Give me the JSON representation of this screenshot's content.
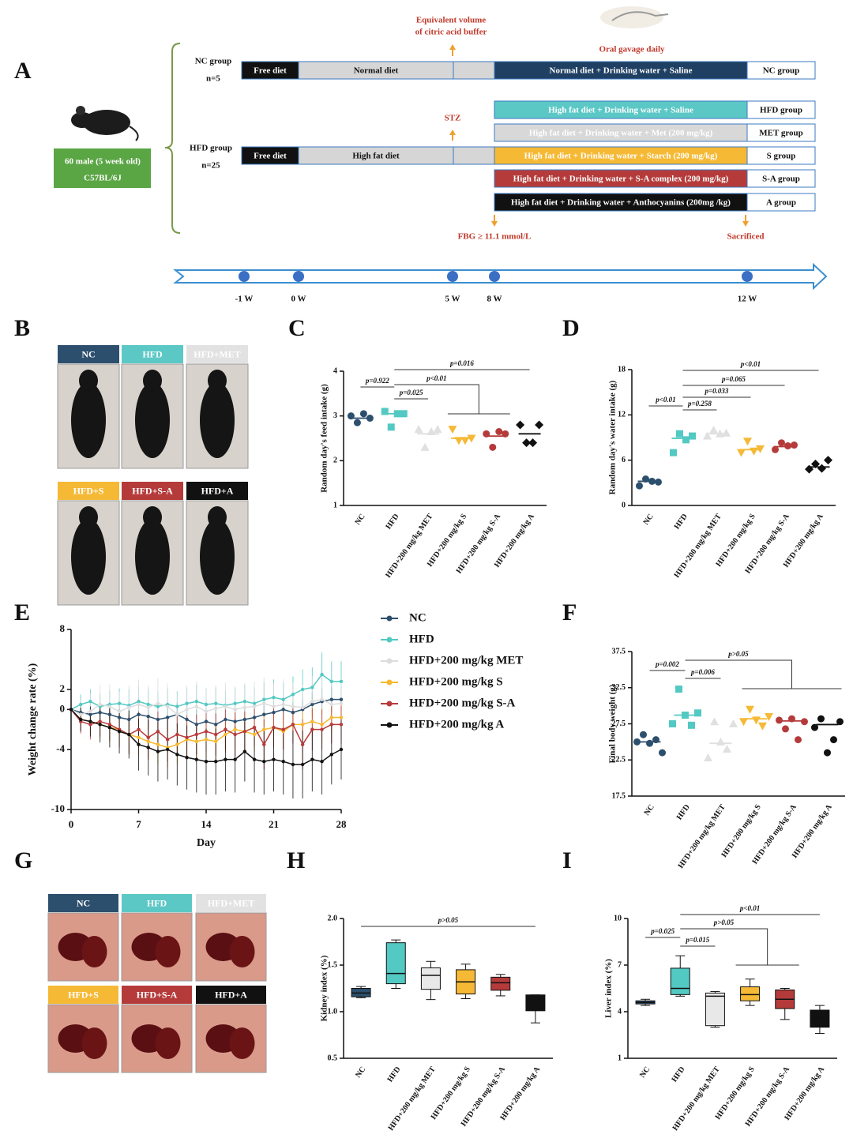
{
  "panel_labels": [
    "A",
    "B",
    "C",
    "D",
    "E",
    "F",
    "G",
    "H",
    "I"
  ],
  "diagram": {
    "annotations": {
      "buffer": [
        "Equivalent volume",
        "of citric acid buffer"
      ],
      "gavage": "Oral gavage daily",
      "stz": "STZ",
      "fbg": "FBG ≥ 11.1 mmol/L",
      "sacrificed": "Sacrificed"
    },
    "mice": [
      "60 male (5 week old)",
      "C57BL/6J"
    ],
    "nc": {
      "name": "NC group",
      "n": "n=5",
      "stages": [
        "Free diet",
        "Normal diet"
      ],
      "treatment": "Normal diet + Drinking water + Saline",
      "group": "NC group",
      "color": "#1f3f63"
    },
    "hfd": {
      "name": "HFD group",
      "n": "n=25",
      "stages": [
        "Free diet",
        "High fat diet"
      ],
      "treatments": [
        {
          "label": "High fat diet + Drinking water + Saline",
          "group": "HFD group",
          "color": "#5bc8c6"
        },
        {
          "label": "High fat diet + Drinking water + Met (200 mg/kg)",
          "group": "MET group",
          "color": "#d8d8d8"
        },
        {
          "label": "High fat diet + Drinking water + Starch (200 mg/kg)",
          "group": "S group",
          "color": "#f5b935"
        },
        {
          "label": "High fat diet + Drinking water + S-A complex (200 mg/kg)",
          "group": "S-A group",
          "color": "#b53b3b"
        },
        {
          "label": "High fat diet + Drinking water + Anthocyanins (200mg /kg)",
          "group": "A group",
          "color": "#111111"
        }
      ]
    },
    "timeline": [
      "-1 W",
      "0 W",
      "5 W",
      "8 W",
      "12 W"
    ]
  },
  "photos_b": {
    "labels": [
      "NC",
      "HFD",
      "HFD+MET",
      "HFD+S",
      "HFD+S-A",
      "HFD+A"
    ]
  },
  "photos_g": {
    "labels": [
      "NC",
      "HFD",
      "HFD+MET",
      "HFD+S",
      "HFD+S-A",
      "HFD+A"
    ]
  },
  "chart_data": [
    {
      "type": "dot",
      "ylabel": "Random day's feed intake (g)",
      "ylim": [
        1,
        4
      ],
      "yticks": [
        1,
        2,
        3,
        4
      ],
      "categories": [
        "NC",
        "HFD",
        "HFD+200 mg/kg MET",
        "HFD+200 mg/kg S",
        "HFD+200 mg/kg S-A",
        "HFD+200 mg/kg A"
      ],
      "colors": [
        "#2d4f6e",
        "#52c9c2",
        "#e0e0e0",
        "#f5b935",
        "#b53b3b",
        "#111111"
      ],
      "markers": [
        "circle",
        "square",
        "triangle-up",
        "triangle-down",
        "circle",
        "diamond"
      ],
      "points": [
        [
          3.0,
          2.85,
          3.05,
          2.95
        ],
        [
          3.1,
          2.75,
          3.05,
          3.05
        ],
        [
          2.7,
          2.3,
          2.65,
          2.7
        ],
        [
          2.7,
          2.45,
          2.45,
          2.5
        ],
        [
          2.6,
          2.3,
          2.65,
          2.6
        ],
        [
          2.8,
          2.4,
          2.4,
          2.8
        ]
      ],
      "means": [
        2.95,
        3.05,
        2.6,
        2.5,
        2.55,
        2.6
      ],
      "annotations": [
        "p=0.922",
        "p=0.025",
        "p<0.01",
        "p=0.016"
      ]
    },
    {
      "type": "dot",
      "ylabel": "Random day's water intake (g)",
      "ylim": [
        0,
        18
      ],
      "yticks": [
        0,
        6,
        12,
        18
      ],
      "categories": [
        "NC",
        "HFD",
        "HFD+200 mg/kg MET",
        "HFD+200 mg/kg S",
        "HFD+200 mg/kg S-A",
        "HFD+200 mg/kg A"
      ],
      "colors": [
        "#2d4f6e",
        "#52c9c2",
        "#e0e0e0",
        "#f5b935",
        "#b53b3b",
        "#111111"
      ],
      "markers": [
        "circle",
        "square",
        "triangle-up",
        "triangle-down",
        "circle",
        "diamond"
      ],
      "points": [
        [
          2.6,
          3.5,
          3.2,
          3.1
        ],
        [
          7.0,
          9.5,
          8.7,
          9.2
        ],
        [
          9.2,
          10.0,
          9.5,
          9.6
        ],
        [
          7.0,
          8.5,
          7.2,
          7.5
        ],
        [
          7.4,
          8.3,
          7.9,
          8.0
        ],
        [
          4.8,
          5.5,
          4.9,
          6.0
        ]
      ],
      "means": [
        3.2,
        8.9,
        9.5,
        7.4,
        7.8,
        5.1
      ],
      "annotations": [
        "p<0.01",
        "p=0.065",
        "p=0.033",
        "p=0.258",
        "p<0.01"
      ]
    },
    {
      "type": "line",
      "xlabel": "Day",
      "ylabel": "Weight change rate (%)",
      "xlim": [
        0,
        28
      ],
      "xticks": [
        0,
        7,
        14,
        21,
        28
      ],
      "ylim": [
        -10,
        8
      ],
      "yticks": [
        -10,
        -4,
        0,
        2,
        8
      ],
      "x": [
        0,
        1,
        2,
        3,
        4,
        5,
        6,
        7,
        8,
        9,
        10,
        11,
        12,
        13,
        14,
        15,
        16,
        17,
        18,
        19,
        20,
        21,
        22,
        23,
        24,
        25,
        26,
        27,
        28
      ],
      "series": [
        {
          "name": "NC",
          "color": "#2d4f6e",
          "values": [
            0,
            -0.3,
            -0.5,
            -0.3,
            -0.5,
            -0.8,
            -1.0,
            -0.5,
            -0.7,
            -1.0,
            -0.8,
            -0.5,
            -1.0,
            -1.5,
            -1.2,
            -1.5,
            -1.0,
            -1.2,
            -1.0,
            -0.8,
            -0.5,
            -0.3,
            0,
            -0.3,
            0,
            0.5,
            0.8,
            1.0,
            1.0
          ],
          "errors": [
            0,
            0.8,
            1.0,
            1.0,
            1.2,
            1.2,
            1.3,
            1.2,
            1.3,
            1.4,
            1.3,
            1.2,
            1.4,
            1.5,
            1.4,
            1.5,
            1.3,
            1.4,
            1.3,
            1.2,
            1.2,
            1.1,
            1.0,
            1.1,
            1.0,
            1.2,
            1.3,
            1.3,
            1.3
          ]
        },
        {
          "name": "HFD",
          "color": "#52c9c2",
          "values": [
            0,
            0.5,
            0.8,
            0.3,
            0.5,
            0.6,
            0.4,
            0.8,
            0.5,
            0.3,
            0.5,
            0.3,
            0.6,
            0.8,
            0.5,
            0.6,
            0.4,
            0.6,
            0.8,
            0.6,
            1.0,
            1.2,
            1.0,
            1.5,
            2.0,
            2.2,
            3.5,
            2.8,
            2.8
          ],
          "errors": [
            0,
            1.0,
            1.2,
            1.3,
            1.4,
            1.5,
            1.6,
            1.5,
            1.6,
            1.5,
            1.6,
            1.5,
            1.6,
            1.7,
            1.6,
            1.6,
            1.5,
            1.6,
            1.7,
            1.6,
            1.7,
            1.8,
            1.7,
            1.8,
            2.0,
            2.0,
            2.2,
            2.0,
            2.0
          ]
        },
        {
          "name": "HFD+200 mg/kg MET",
          "color": "#dddddd",
          "values": [
            0,
            -0.5,
            -0.2,
            0.5,
            0.3,
            -0.2,
            0.2,
            0.5,
            0.2,
            0.6,
            0.3,
            -0.5,
            0,
            0.3,
            -0.2,
            0.1,
            0.3,
            0,
            0.2,
            0.3,
            0.6,
            0.3,
            0.5,
            0.3,
            0.2,
            0.8,
            1.0,
            0.5,
            0.6
          ],
          "errors": [
            0,
            1.5,
            1.8,
            2.0,
            2.2,
            2.0,
            2.2,
            2.5,
            2.2,
            2.5,
            2.3,
            2.2,
            2.4,
            2.5,
            2.2,
            2.3,
            2.4,
            2.3,
            2.4,
            2.5,
            2.6,
            2.4,
            2.5,
            2.4,
            2.3,
            2.5,
            2.6,
            2.4,
            2.5
          ]
        },
        {
          "name": "HFD+200 mg/kg S",
          "color": "#f5b82e",
          "values": [
            0,
            -1.0,
            -1.2,
            -1.5,
            -1.8,
            -2.0,
            -2.5,
            -2.8,
            -3.2,
            -3.5,
            -3.8,
            -3.5,
            -3.0,
            -3.2,
            -3.0,
            -3.2,
            -2.5,
            -2.0,
            -2.2,
            -2.5,
            -2.0,
            -1.8,
            -2.2,
            -1.5,
            -1.5,
            -1.2,
            -1.5,
            -0.8,
            -0.8
          ],
          "errors": [
            0,
            1.0,
            1.2,
            1.4,
            1.5,
            1.6,
            1.8,
            1.8,
            1.9,
            2.0,
            2.0,
            1.9,
            1.8,
            1.9,
            1.8,
            1.9,
            1.8,
            1.7,
            1.8,
            1.8,
            1.7,
            1.6,
            1.7,
            1.6,
            1.6,
            1.5,
            1.6,
            1.5,
            1.5
          ]
        },
        {
          "name": "HFD+200 mg/kg S-A",
          "color": "#b83a3a",
          "values": [
            0,
            -1.2,
            -1.5,
            -1.2,
            -1.5,
            -2.0,
            -2.5,
            -2.0,
            -2.8,
            -2.2,
            -3.0,
            -2.5,
            -2.8,
            -2.5,
            -2.2,
            -2.5,
            -2.0,
            -2.5,
            -2.2,
            -1.8,
            -3.5,
            -1.8,
            -2.0,
            -1.5,
            -3.5,
            -2.0,
            -2.0,
            -1.5,
            -1.5
          ],
          "errors": [
            0,
            1.2,
            1.5,
            1.5,
            1.6,
            1.8,
            2.0,
            1.8,
            2.2,
            2.0,
            2.2,
            2.0,
            2.2,
            2.0,
            2.0,
            2.1,
            2.0,
            2.2,
            2.0,
            1.9,
            2.5,
            2.0,
            2.0,
            1.9,
            2.5,
            2.1,
            2.0,
            1.9,
            1.9
          ]
        },
        {
          "name": "HFD+200 mg/kg A",
          "color": "#111111",
          "values": [
            0,
            -1.0,
            -1.2,
            -1.5,
            -1.8,
            -2.2,
            -2.5,
            -3.5,
            -3.8,
            -4.2,
            -4.0,
            -4.5,
            -4.8,
            -5.0,
            -5.2,
            -5.2,
            -5.0,
            -5.0,
            -4.2,
            -5.0,
            -5.2,
            -5.0,
            -5.2,
            -5.5,
            -5.5,
            -5.0,
            -5.2,
            -4.5,
            -4.0
          ],
          "errors": [
            0,
            1.2,
            1.5,
            1.8,
            2.0,
            2.2,
            2.4,
            2.6,
            2.8,
            3.0,
            3.0,
            3.1,
            3.2,
            3.3,
            3.3,
            3.3,
            3.2,
            3.3,
            3.0,
            3.3,
            3.3,
            3.2,
            3.3,
            3.4,
            3.4,
            3.2,
            3.3,
            3.0,
            3.0
          ]
        }
      ]
    },
    {
      "type": "dot",
      "ylabel": "Final body weight (g)",
      "ylim": [
        17.5,
        37.5
      ],
      "yticks": [
        17.5,
        22.5,
        27.5,
        32.5,
        37.5
      ],
      "categories": [
        "NC",
        "HFD",
        "HFD+200 mg/kg MET",
        "HFD+200 mg/kg S",
        "HFD+200 mg/kg S-A",
        "HFD+200 mg/kg A"
      ],
      "colors": [
        "#2d4f6e",
        "#52c9c2",
        "#e0e0e0",
        "#f5b935",
        "#b53b3b",
        "#111111"
      ],
      "markers": [
        "circle",
        "square",
        "triangle-up",
        "triangle-down",
        "circle",
        "circle"
      ],
      "points": [
        [
          25.0,
          26.0,
          24.8,
          25.3,
          23.5
        ],
        [
          27.5,
          32.3,
          28.7,
          27.3,
          29.0
        ],
        [
          22.8,
          27.8,
          25.0,
          24.0,
          27.5
        ],
        [
          27.8,
          29.5,
          28.0,
          27.2,
          28.5
        ],
        [
          28.0,
          26.8,
          28.2,
          25.3,
          27.8
        ],
        [
          27.0,
          28.2,
          23.5,
          25.3,
          27.8
        ]
      ],
      "means": [
        25.0,
        28.7,
        24.8,
        28.2,
        27.9,
        27.4
      ],
      "annotations": [
        "p=0.002",
        "p=0.006",
        "p>0.05"
      ]
    },
    {
      "type": "box",
      "ylabel": "Kidney index (%)",
      "ylim": [
        0.5,
        2.0
      ],
      "yticks": [
        {
          "value": 0.5,
          "label": "0.5"
        },
        {
          "value": 1.0,
          "label": "1.0"
        },
        {
          "value": 1.5,
          "label": "1.5"
        },
        {
          "value": 2.0,
          "label": "2.0"
        }
      ],
      "categories": [
        "NC",
        "HFD",
        "HFD+200 mg/kg MET",
        "HFD+200 mg/kg S",
        "HFD+200 mg/kg S-A",
        "HFD+200 mg/kg A"
      ],
      "colors": [
        "#2d4f6e",
        "#52c9c2",
        "#e8e8e8",
        "#f5b935",
        "#b53b3b",
        "#111111"
      ],
      "boxes": [
        [
          1.15,
          1.16,
          1.2,
          1.25,
          1.27
        ],
        [
          1.25,
          1.3,
          1.41,
          1.74,
          1.77
        ],
        [
          1.13,
          1.24,
          1.39,
          1.47,
          1.54
        ],
        [
          1.14,
          1.19,
          1.32,
          1.45,
          1.51
        ],
        [
          1.17,
          1.23,
          1.31,
          1.37,
          1.4
        ],
        [
          0.88,
          1.01,
          1.1,
          1.18,
          1.18
        ]
      ],
      "annotations": [
        "p>0.05"
      ]
    },
    {
      "type": "box",
      "ylabel": "Liver index (%)",
      "ylim": [
        1,
        10
      ],
      "yticks": [
        1,
        4,
        7,
        10
      ],
      "categories": [
        "NC",
        "HFD",
        "HFD+200 mg/kg MET",
        "HFD+200 mg/kg S",
        "HFD+200 mg/kg S-A",
        "HFD+200 mg/kg A"
      ],
      "colors": [
        "#2d4f6e",
        "#52c9c2",
        "#e8e8e8",
        "#f5b935",
        "#b53b3b",
        "#111111"
      ],
      "boxes": [
        [
          4.4,
          4.5,
          4.6,
          4.7,
          4.8
        ],
        [
          5.0,
          5.1,
          5.5,
          6.8,
          7.6
        ],
        [
          3.0,
          3.1,
          5.0,
          5.2,
          5.3
        ],
        [
          4.4,
          4.7,
          5.1,
          5.6,
          6.1
        ],
        [
          3.5,
          4.2,
          4.8,
          5.4,
          5.5
        ],
        [
          2.6,
          3.0,
          3.6,
          4.1,
          4.4
        ]
      ],
      "annotations": [
        "p<0.01",
        "p>0.05",
        "p=0.025",
        "p=0.015"
      ]
    }
  ]
}
